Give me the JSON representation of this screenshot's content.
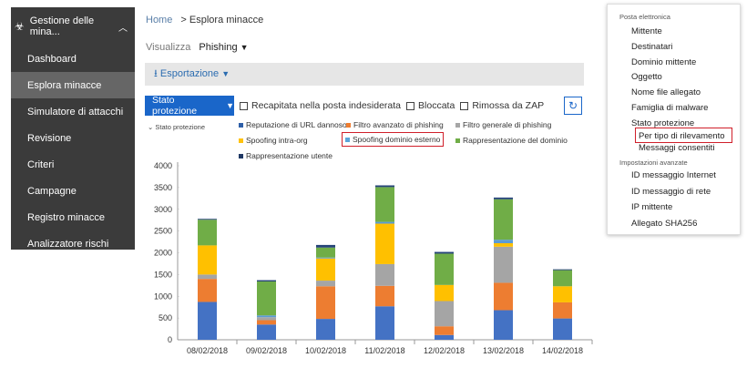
{
  "sidebar": {
    "title": "Gestione delle mina...",
    "items": [
      {
        "label": "Dashboard",
        "active": false
      },
      {
        "label": "Esplora minacce",
        "active": true
      },
      {
        "label": "Simulatore di attacchi",
        "active": false
      },
      {
        "label": "Revisione",
        "active": false
      },
      {
        "label": "Criteri",
        "active": false
      },
      {
        "label": "Campagne",
        "active": false
      },
      {
        "label": "Registro minacce",
        "active": false
      },
      {
        "label": "Analizzatore rischi",
        "active": false
      }
    ]
  },
  "breadcrumb": {
    "home": "Home",
    "current": "> Esplora minacce"
  },
  "view": {
    "label": "Visualizza",
    "value": "Phishing"
  },
  "export_label": "Esportazione",
  "filters": {
    "status_button": "Stato protezione",
    "checks": [
      "Recapitata nella posta indesiderata",
      "Bloccata",
      "Rimossa da ZAP"
    ]
  },
  "legend_title": "Stato protezione",
  "legend": [
    {
      "name": "Reputazione di URL dannoso",
      "color": "#2e5fa8"
    },
    {
      "name": "Filtro avanzato di phishing",
      "color": "#ef7d30"
    },
    {
      "name": "Filtro generale di phishing",
      "color": "#a6a6a6"
    },
    {
      "name": "Spoofing intra-org",
      "color": "#ffc20e"
    },
    {
      "name": "Spoofing dominio esterno",
      "color": "#5ba5d9"
    },
    {
      "name": "Rappresentazione del dominio",
      "color": "#70ad47"
    },
    {
      "name": "Rappresentazione utente",
      "color": "#1f3864"
    }
  ],
  "chart_data": {
    "type": "bar",
    "stacked": true,
    "categories": [
      "08/02/2018",
      "09/02/2018",
      "10/02/2018",
      "11/02/2018",
      "12/02/2018",
      "13/02/2018",
      "14/02/2018"
    ],
    "ylim": [
      0,
      4000
    ],
    "yticks": [
      "0",
      "500",
      "1000",
      "1500",
      "2000",
      "2500",
      "3000",
      "3500",
      "4000"
    ],
    "series": [
      {
        "name": "Reputazione di URL dannoso",
        "color": "#4472c4",
        "values": [
          870,
          350,
          480,
          770,
          110,
          680,
          490
        ]
      },
      {
        "name": "Filtro avanzato di phishing",
        "color": "#ed7d31",
        "values": [
          530,
          100,
          750,
          470,
          200,
          630,
          370
        ]
      },
      {
        "name": "Filtro generale di phishing",
        "color": "#a5a5a5",
        "values": [
          100,
          70,
          130,
          500,
          580,
          830,
          0
        ]
      },
      {
        "name": "Spoofing intra-org",
        "color": "#ffc000",
        "values": [
          670,
          0,
          510,
          930,
          370,
          80,
          370
        ]
      },
      {
        "name": "Spoofing dominio esterno",
        "color": "#5b9bd5",
        "values": [
          0,
          40,
          20,
          40,
          0,
          80,
          0
        ]
      },
      {
        "name": "Rappresentazione del dominio",
        "color": "#70ad47",
        "values": [
          590,
          780,
          230,
          800,
          720,
          930,
          370
        ]
      },
      {
        "name": "Rappresentazione utente",
        "color": "#264478",
        "values": [
          20,
          30,
          60,
          40,
          40,
          40,
          20
        ]
      }
    ]
  },
  "dropdown": {
    "section1": "Posta elettronica",
    "items1": [
      "Mittente",
      "Destinatari",
      "Dominio mittente",
      "Oggetto",
      "Nome file allegato",
      "Famiglia di malware",
      "Stato protezione"
    ],
    "sub_selected": "Per tipo di rilevamento",
    "sub_other": "Messaggi consentiti",
    "section2": "Impostazioni avanzate",
    "items2": [
      "ID messaggio Internet",
      "ID messaggio di rete",
      "IP mittente",
      "Allegato SHA256"
    ]
  }
}
